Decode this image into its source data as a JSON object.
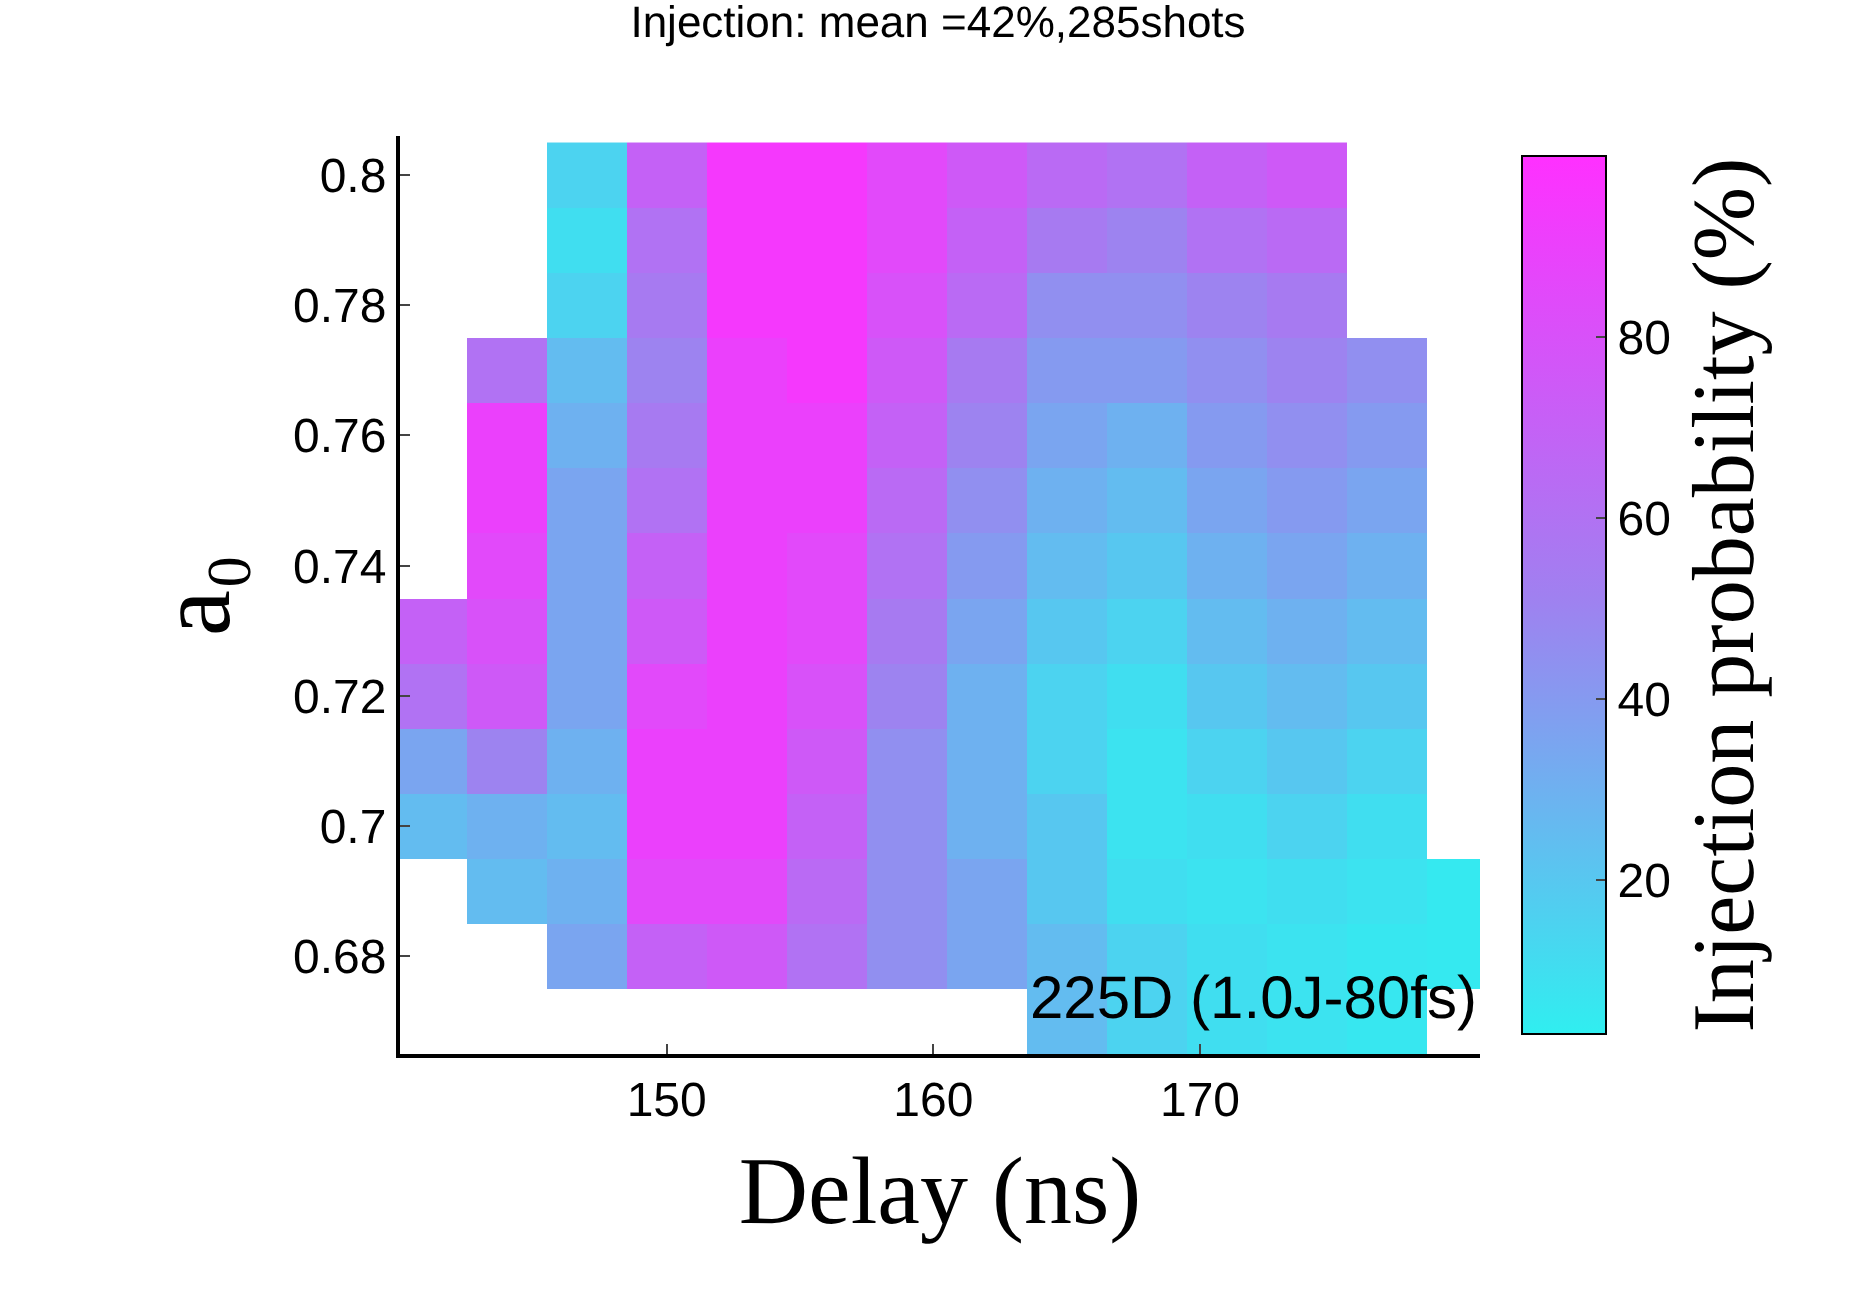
{
  "chart_data": {
    "type": "heatmap",
    "title": "Injection: mean =42%,285shots",
    "xlabel": "Delay (ns)",
    "ylabel": "a₀",
    "clabel": "Injection probability (%)",
    "annotations": [
      "225D (1.0J-80fs)"
    ],
    "x": [
      141,
      144,
      147,
      150,
      153,
      156,
      159,
      162,
      165,
      168,
      171,
      174,
      177,
      180
    ],
    "y": [
      0.8,
      0.79,
      0.78,
      0.77,
      0.76,
      0.75,
      0.74,
      0.73,
      0.72,
      0.71,
      0.7,
      0.69,
      0.68,
      0.67
    ],
    "cells": [
      [
        null,
        null,
        15,
        70,
        95,
        95,
        85,
        75,
        65,
        60,
        70,
        75,
        null,
        null
      ],
      [
        null,
        null,
        10,
        60,
        95,
        95,
        85,
        70,
        55,
        50,
        60,
        65,
        null,
        null
      ],
      [
        null,
        null,
        15,
        55,
        95,
        95,
        80,
        65,
        45,
        45,
        50,
        55,
        null,
        null
      ],
      [
        null,
        60,
        25,
        50,
        90,
        95,
        75,
        55,
        40,
        40,
        45,
        50,
        45,
        null
      ],
      [
        null,
        90,
        30,
        55,
        90,
        90,
        70,
        50,
        35,
        30,
        40,
        45,
        40,
        null
      ],
      [
        null,
        90,
        35,
        60,
        90,
        90,
        65,
        45,
        30,
        25,
        35,
        40,
        35,
        null
      ],
      [
        null,
        85,
        35,
        70,
        90,
        85,
        60,
        40,
        25,
        20,
        30,
        35,
        30,
        null
      ],
      [
        70,
        80,
        35,
        75,
        90,
        85,
        55,
        35,
        20,
        15,
        25,
        30,
        25,
        null
      ],
      [
        60,
        75,
        35,
        85,
        90,
        80,
        50,
        30,
        15,
        10,
        20,
        25,
        20,
        null
      ],
      [
        35,
        50,
        30,
        90,
        90,
        75,
        45,
        30,
        15,
        8,
        15,
        20,
        15,
        null
      ],
      [
        25,
        30,
        25,
        90,
        90,
        70,
        45,
        30,
        20,
        8,
        10,
        15,
        10,
        null
      ],
      [
        null,
        25,
        30,
        85,
        85,
        65,
        45,
        35,
        20,
        10,
        8,
        10,
        8,
        5
      ],
      [
        null,
        null,
        35,
        70,
        75,
        60,
        45,
        35,
        25,
        15,
        10,
        8,
        6,
        5
      ],
      [
        null,
        null,
        null,
        null,
        null,
        null,
        null,
        null,
        25,
        15,
        10,
        8,
        6,
        null
      ]
    ],
    "colors": [
      "#30eef0",
      "#a080f0",
      "#ff30ff"
    ],
    "clim": [
      3,
      100
    ],
    "cticks": [
      20,
      40,
      60,
      80
    ],
    "xlim": [
      140,
      180.5
    ],
    "xticks": [
      150,
      160,
      170
    ],
    "ylim": [
      0.665,
      0.806
    ],
    "yticks": [
      0.68,
      0.7,
      0.72,
      0.74,
      0.76,
      0.78,
      0.8
    ],
    "grid": false
  }
}
